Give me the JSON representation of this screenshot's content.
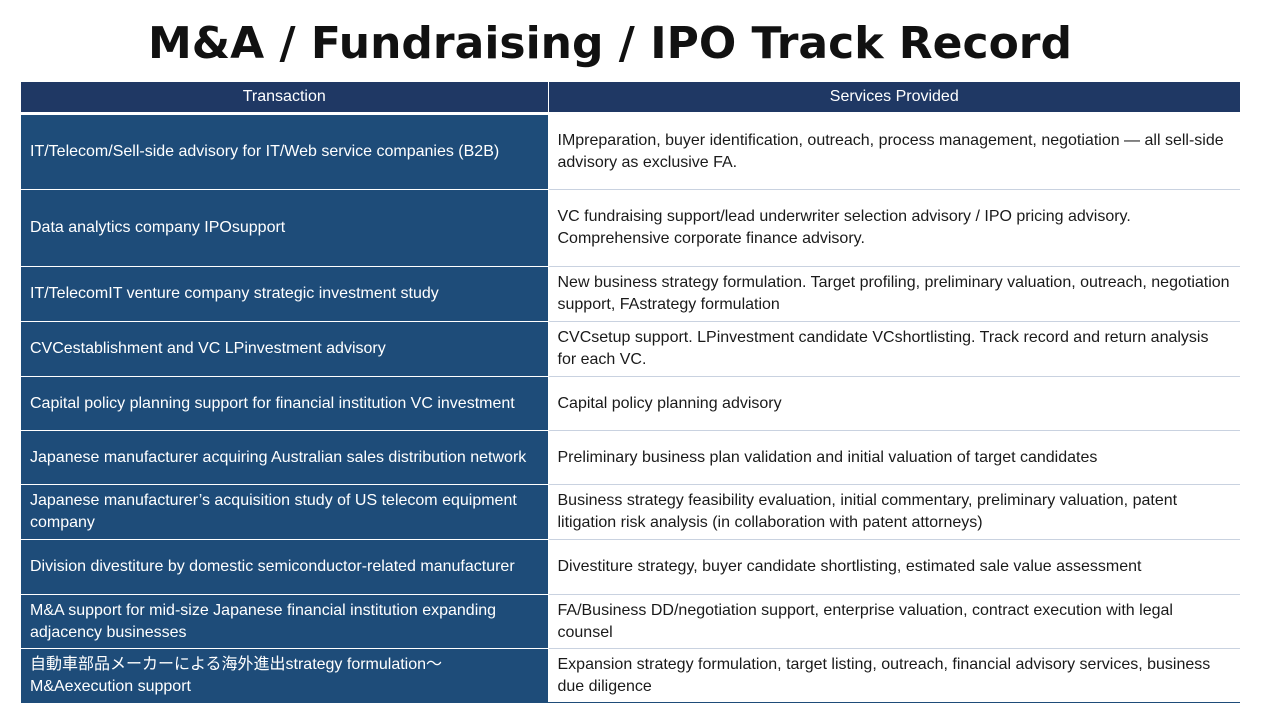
{
  "title": "M&A / Fundraising / IPO Track Record",
  "table": {
    "headers": [
      "Transaction",
      "Services Provided"
    ],
    "rows": [
      {
        "transaction": "IT/Telecom/Sell-side advisory for IT/Web service companies (B2B)",
        "services": "IMpreparation, buyer identification, outreach, process management, negotiation — all sell-side advisory as exclusive FA."
      },
      {
        "transaction": "Data analytics company IPOsupport",
        "services": "VC fundraising support/lead underwriter selection advisory / IPO pricing advisory. Comprehensive corporate finance advisory."
      },
      {
        "transaction": "IT/TelecomIT venture company strategic investment study",
        "services": "New business strategy formulation. Target profiling, preliminary valuation, outreach, negotiation support, FAstrategy formulation"
      },
      {
        "transaction": "CVCestablishment and VC LPinvestment advisory",
        "services": "CVCsetup support. LPinvestment candidate VCshortlisting. Track record and return analysis for each VC."
      },
      {
        "transaction": "Capital policy planning support for financial institution VC investment",
        "services": "Capital policy planning advisory"
      },
      {
        "transaction": "Japanese manufacturer acquiring Australian sales distribution network",
        "services": "Preliminary business plan validation and initial valuation of target candidates"
      },
      {
        "transaction": "Japanese manufacturer’s acquisition study of US telecom equipment company",
        "services": "Business strategy feasibility evaluation, initial commentary, preliminary valuation, patent litigation risk analysis (in collaboration with patent attorneys)"
      },
      {
        "transaction": "Division divestiture by domestic semiconductor-related manufacturer",
        "services": "Divestiture strategy, buyer candidate shortlisting, estimated sale value assessment"
      },
      {
        "transaction": "M&A support for mid-size Japanese financial institution expanding adjacency businesses",
        "services": "FA/Business DD/negotiation support, enterprise valuation, contract execution with legal counsel"
      },
      {
        "transaction": "自動車部品メーカーによる海外進出strategy formulation～M&Aexecution support",
        "services": "Expansion strategy formulation, target listing, outreach, financial advisory services, business due diligence"
      }
    ]
  }
}
